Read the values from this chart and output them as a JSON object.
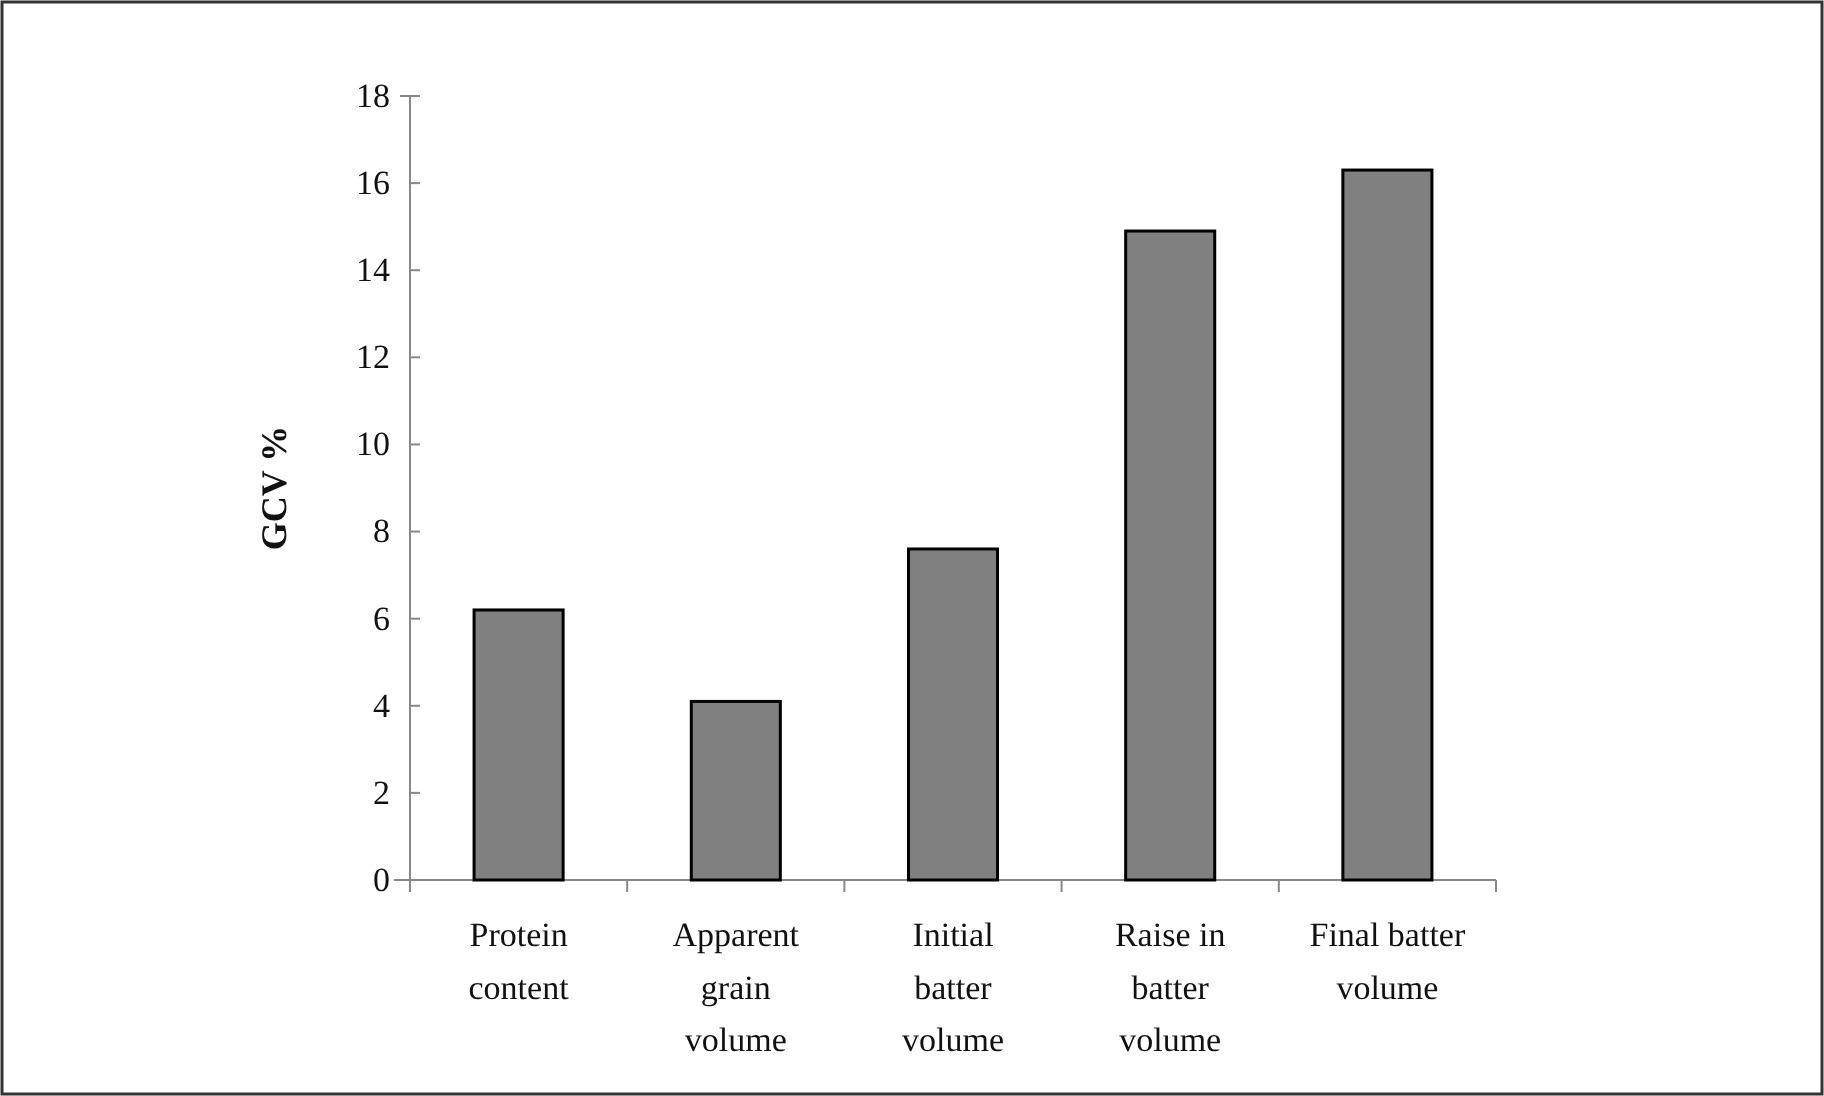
{
  "chart_data": {
    "type": "bar",
    "ylabel": "GCV %",
    "categories": [
      "Protein content",
      "Apparent grain volume",
      "Initial batter volume",
      "Raise in batter volume",
      "Final batter volume"
    ],
    "values": [
      6.2,
      4.1,
      7.6,
      14.9,
      16.3
    ],
    "color": "#808080",
    "ylim": [
      0,
      18
    ],
    "yticks": [
      0,
      2,
      4,
      6,
      8,
      10,
      12,
      14,
      16,
      18
    ],
    "grid": false
  }
}
